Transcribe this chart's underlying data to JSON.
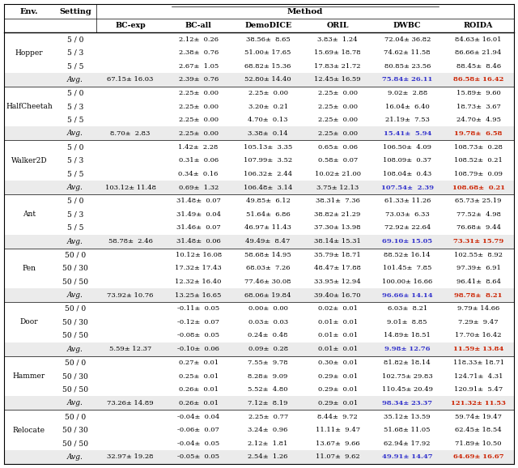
{
  "col_headers": [
    "BC-exp",
    "BC-all",
    "DemoDICE",
    "ORIL",
    "DWBC",
    "ROIDA"
  ],
  "rows": [
    {
      "env": "Hopper",
      "setting": "5 / 0",
      "BC-exp": "",
      "BC-all": "2.12±  0.26",
      "DemoDICE": "38.56±  8.65",
      "ORIL": "3.83±  1.24",
      "DWBC": "72.04± 36.82",
      "ROIDA": "84.63± 16.01"
    },
    {
      "env": "Hopper",
      "setting": "5 / 3",
      "BC-exp": "",
      "BC-all": "2.38±  0.76",
      "DemoDICE": "51.00± 17.65",
      "ORIL": "15.69± 18.78",
      "DWBC": "74.62± 11.58",
      "ROIDA": "86.66± 21.94"
    },
    {
      "env": "Hopper",
      "setting": "5 / 5",
      "BC-exp": "",
      "BC-all": "2.67±  1.05",
      "DemoDICE": "68.82± 15.36",
      "ORIL": "17.83± 21.72",
      "DWBC": "80.85± 23.56",
      "ROIDA": "88.45±  8.46"
    },
    {
      "env": "Hopper",
      "setting": "Avg.",
      "BC-exp": "67.15± 16.03",
      "BC-all": "2.39±  0.76",
      "DemoDICE": "52.80± 14.40",
      "ORIL": "12.45± 16.59",
      "DWBC": "75.84± 26.11",
      "ROIDA": "86.58± 16.42",
      "dwbc_hi": true,
      "roida_hi": true
    },
    {
      "env": "HalfCheetah",
      "setting": "5 / 0",
      "BC-exp": "",
      "BC-all": "2.25±  0.00",
      "DemoDICE": "2.25±  0.00",
      "ORIL": "2.25±  0.00",
      "DWBC": "9.02±  2.88",
      "ROIDA": "15.89±  9.60"
    },
    {
      "env": "HalfCheetah",
      "setting": "5 / 3",
      "BC-exp": "",
      "BC-all": "2.25±  0.00",
      "DemoDICE": "3.20±  0.21",
      "ORIL": "2.25±  0.00",
      "DWBC": "16.04±  6.40",
      "ROIDA": "18.73±  3.67"
    },
    {
      "env": "HalfCheetah",
      "setting": "5 / 5",
      "BC-exp": "",
      "BC-all": "2.25±  0.00",
      "DemoDICE": "4.70±  0.13",
      "ORIL": "2.25±  0.00",
      "DWBC": "21.19±  7.53",
      "ROIDA": "24.70±  4.95"
    },
    {
      "env": "HalfCheetah",
      "setting": "Avg.",
      "BC-exp": "8.70±  2.83",
      "BC-all": "2.25±  0.00",
      "DemoDICE": "3.38±  0.14",
      "ORIL": "2.25±  0.00",
      "DWBC": "15.41±  5.94",
      "ROIDA": "19.78±  6.58",
      "dwbc_hi": true,
      "roida_hi": true
    },
    {
      "env": "Walker2D",
      "setting": "5 / 0",
      "BC-exp": "",
      "BC-all": "1.42±  2.28",
      "DemoDICE": "105.13±  3.35",
      "ORIL": "0.65±  0.06",
      "DWBC": "106.50±  4.09",
      "ROIDA": "108.73±  0.28"
    },
    {
      "env": "Walker2D",
      "setting": "5 / 3",
      "BC-exp": "",
      "BC-all": "0.31±  0.06",
      "DemoDICE": "107.99±  3.52",
      "ORIL": "0.58±  0.07",
      "DWBC": "108.09±  0.37",
      "ROIDA": "108.52±  0.21"
    },
    {
      "env": "Walker2D",
      "setting": "5 / 5",
      "BC-exp": "",
      "BC-all": "0.34±  0.16",
      "DemoDICE": "106.32±  2.44",
      "ORIL": "10.02± 21.00",
      "DWBC": "108.04±  0.43",
      "ROIDA": "108.79±  0.09"
    },
    {
      "env": "Walker2D",
      "setting": "Avg.",
      "BC-exp": "103.12± 11.48",
      "BC-all": "0.69±  1.32",
      "DemoDICE": "106.48±  3.14",
      "ORIL": "3.75± 12.13",
      "DWBC": "107.54±  2.39",
      "ROIDA": "108.68±  0.21",
      "dwbc_hi": true,
      "roida_hi": true
    },
    {
      "env": "Ant",
      "setting": "5 / 0",
      "BC-exp": "",
      "BC-all": "31.48±  0.07",
      "DemoDICE": "49.85±  6.12",
      "ORIL": "38.31±  7.36",
      "DWBC": "61.33± 11.26",
      "ROIDA": "65.73± 25.19"
    },
    {
      "env": "Ant",
      "setting": "5 / 3",
      "BC-exp": "",
      "BC-all": "31.49±  0.04",
      "DemoDICE": "51.64±  6.86",
      "ORIL": "38.82± 21.29",
      "DWBC": "73.03±  6.33",
      "ROIDA": "77.52±  4.98"
    },
    {
      "env": "Ant",
      "setting": "5 / 5",
      "BC-exp": "",
      "BC-all": "31.46±  0.07",
      "DemoDICE": "46.97± 11.43",
      "ORIL": "37.30± 13.98",
      "DWBC": "72.92± 22.64",
      "ROIDA": "76.68±  9.44"
    },
    {
      "env": "Ant",
      "setting": "Avg.",
      "BC-exp": "58.78±  2.46",
      "BC-all": "31.48±  0.06",
      "DemoDICE": "49.49±  8.47",
      "ORIL": "38.14± 15.31",
      "DWBC": "69.10± 15.05",
      "ROIDA": "73.31± 15.79",
      "dwbc_hi": true,
      "roida_hi": true
    },
    {
      "env": "Pen",
      "setting": "50 / 0",
      "BC-exp": "",
      "BC-all": "10.12± 16.08",
      "DemoDICE": "58.68± 14.95",
      "ORIL": "35.79± 18.71",
      "DWBC": "88.52± 16.14",
      "ROIDA": "102.55±  8.92"
    },
    {
      "env": "Pen",
      "setting": "50 / 30",
      "BC-exp": "",
      "BC-all": "17.32± 17.43",
      "DemoDICE": "68.03±  7.26",
      "ORIL": "48.47± 17.88",
      "DWBC": "101.45±  7.85",
      "ROIDA": "97.39±  6.91"
    },
    {
      "env": "Pen",
      "setting": "50 / 50",
      "BC-exp": "",
      "BC-all": "12.32± 16.40",
      "DemoDICE": "77.46± 30.08",
      "ORIL": "33.95± 12.94",
      "DWBC": "100.00± 16.66",
      "ROIDA": "96.41±  8.64"
    },
    {
      "env": "Pen",
      "setting": "Avg.",
      "BC-exp": "73.92± 10.76",
      "BC-all": "13.25± 16.65",
      "DemoDICE": "68.06± 19.84",
      "ORIL": "39.40± 16.70",
      "DWBC": "96.66± 14.14",
      "ROIDA": "98.78±  8.21",
      "dwbc_hi": true,
      "roida_hi": true
    },
    {
      "env": "Door",
      "setting": "50 / 0",
      "BC-exp": "",
      "BC-all": "-0.11±  0.05",
      "DemoDICE": "0.00±  0.00",
      "ORIL": "0.02±  0.01",
      "DWBC": "6.03±  8.21",
      "ROIDA": "9.79± 14.66"
    },
    {
      "env": "Door",
      "setting": "50 / 30",
      "BC-exp": "",
      "BC-all": "-0.12±  0.07",
      "DemoDICE": "0.03±  0.03",
      "ORIL": "0.01±  0.01",
      "DWBC": "9.01±  8.85",
      "ROIDA": "7.29±  9.47"
    },
    {
      "env": "Door",
      "setting": "50 / 50",
      "BC-exp": "",
      "BC-all": "-0.08±  0.05",
      "DemoDICE": "0.24±  0.48",
      "ORIL": "0.01±  0.01",
      "DWBC": "14.89± 18.51",
      "ROIDA": "17.70± 16.42"
    },
    {
      "env": "Door",
      "setting": "Avg.",
      "BC-exp": "5.59± 12.37",
      "BC-all": "-0.10±  0.06",
      "DemoDICE": "0.09±  0.28",
      "ORIL": "0.01±  0.01",
      "DWBC": "9.98± 12.76",
      "ROIDA": "11.59± 13.84",
      "dwbc_hi": true,
      "roida_hi": true
    },
    {
      "env": "Hammer",
      "setting": "50 / 0",
      "BC-exp": "",
      "BC-all": "0.27±  0.01",
      "DemoDICE": "7.55±  9.78",
      "ORIL": "0.30±  0.01",
      "DWBC": "81.82± 18.14",
      "ROIDA": "118.33± 18.71"
    },
    {
      "env": "Hammer",
      "setting": "50 / 30",
      "BC-exp": "",
      "BC-all": "0.25±  0.01",
      "DemoDICE": "8.28±  9.09",
      "ORIL": "0.29±  0.01",
      "DWBC": "102.75± 29.83",
      "ROIDA": "124.71±  4.31"
    },
    {
      "env": "Hammer",
      "setting": "50 / 50",
      "BC-exp": "",
      "BC-all": "0.26±  0.01",
      "DemoDICE": "5.52±  4.80",
      "ORIL": "0.29±  0.01",
      "DWBC": "110.45± 20.49",
      "ROIDA": "120.91±  5.47"
    },
    {
      "env": "Hammer",
      "setting": "Avg.",
      "BC-exp": "73.26± 14.89",
      "BC-all": "0.26±  0.01",
      "DemoDICE": "7.12±  8.19",
      "ORIL": "0.29±  0.01",
      "DWBC": "98.34± 23.37",
      "ROIDA": "121.32± 11.53",
      "dwbc_hi": true,
      "roida_hi": true
    },
    {
      "env": "Relocate",
      "setting": "50 / 0",
      "BC-exp": "",
      "BC-all": "-0.04±  0.04",
      "DemoDICE": "2.25±  0.77",
      "ORIL": "8.44±  9.72",
      "DWBC": "35.12± 13.59",
      "ROIDA": "59.74± 19.47"
    },
    {
      "env": "Relocate",
      "setting": "50 / 30",
      "BC-exp": "",
      "BC-all": "-0.06±  0.07",
      "DemoDICE": "3.24±  0.96",
      "ORIL": "11.11±  9.47",
      "DWBC": "51.68± 11.05",
      "ROIDA": "62.45± 18.54"
    },
    {
      "env": "Relocate",
      "setting": "50 / 50",
      "BC-exp": "",
      "BC-all": "-0.04±  0.05",
      "DemoDICE": "2.12±  1.81",
      "ORIL": "13.67±  9.66",
      "DWBC": "62.94± 17.92",
      "ROIDA": "71.89± 10.50"
    },
    {
      "env": "Relocate",
      "setting": "Avg.",
      "BC-exp": "32.97± 19.28",
      "BC-all": "-0.05±  0.05",
      "DemoDICE": "2.54±  1.26",
      "ORIL": "11.07±  9.62",
      "DWBC": "49.91± 14.47",
      "ROIDA": "64.69± 16.67",
      "dwbc_hi": true,
      "roida_hi": true
    }
  ],
  "highlight_dwbc_color": "#3333CC",
  "highlight_roida_color": "#CC2200",
  "avg_bg_color": "#EBEBEB",
  "fig_bg_color": "#FFFFFF",
  "font_family": "DejaVu Serif"
}
